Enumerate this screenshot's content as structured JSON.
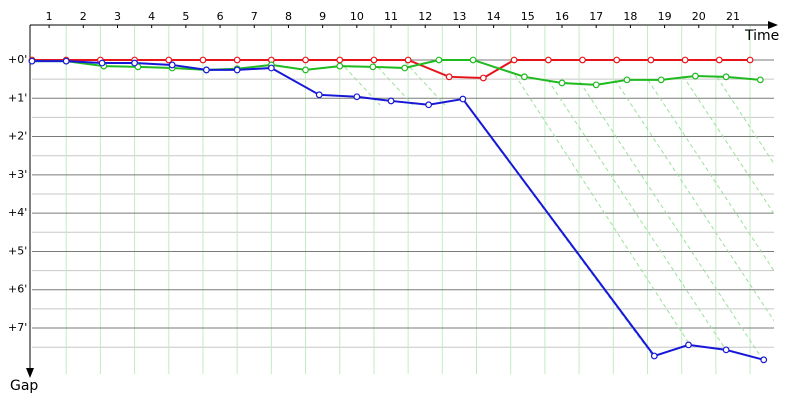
{
  "chart_data": {
    "type": "line",
    "x_label": "Time",
    "y_label": "Gap",
    "xlim": [
      0,
      21.7
    ],
    "ylim": [
      -0.9,
      8.2
    ],
    "y_inverted": true,
    "grid": true,
    "xticks": [
      {
        "value": 0.5,
        "label": "1"
      },
      {
        "value": 1.5,
        "label": "2"
      },
      {
        "value": 2.5,
        "label": "3"
      },
      {
        "value": 3.5,
        "label": "4"
      },
      {
        "value": 4.5,
        "label": "5"
      },
      {
        "value": 5.5,
        "label": "6"
      },
      {
        "value": 6.5,
        "label": "7"
      },
      {
        "value": 7.5,
        "label": "8"
      },
      {
        "value": 8.5,
        "label": "9"
      },
      {
        "value": 9.5,
        "label": "10"
      },
      {
        "value": 10.5,
        "label": "11"
      },
      {
        "value": 11.5,
        "label": "12"
      },
      {
        "value": 12.5,
        "label": "13"
      },
      {
        "value": 13.5,
        "label": "14"
      },
      {
        "value": 14.5,
        "label": "15"
      },
      {
        "value": 15.5,
        "label": "16"
      },
      {
        "value": 16.5,
        "label": "17"
      },
      {
        "value": 17.5,
        "label": "18"
      },
      {
        "value": 18.5,
        "label": "19"
      },
      {
        "value": 19.5,
        "label": "20"
      },
      {
        "value": 20.5,
        "label": "21"
      }
    ],
    "xgrid": [
      1,
      2,
      3,
      4,
      5,
      6,
      7,
      8,
      9,
      10,
      11,
      12,
      13,
      14,
      15,
      16,
      17,
      18,
      19,
      20,
      21
    ],
    "yticks": [
      {
        "value": 0,
        "label": "+0'"
      },
      {
        "value": 1,
        "label": "+1'"
      },
      {
        "value": 2,
        "label": "+2'"
      },
      {
        "value": 3,
        "label": "+3'"
      },
      {
        "value": 4,
        "label": "+4'"
      },
      {
        "value": 5,
        "label": "+5'"
      },
      {
        "value": 6,
        "label": "+6'"
      },
      {
        "value": 7,
        "label": "+7'"
      }
    ],
    "minor_yticks": [
      0.5,
      1.5,
      2.5,
      3.5,
      4.5,
      5.5,
      6.5,
      7.5
    ],
    "series": [
      {
        "color": "#e8141b",
        "x": [
          0,
          1,
          2,
          3,
          4,
          5,
          6,
          7,
          8,
          9,
          10,
          11,
          12.2,
          13.2,
          14.1,
          15.1,
          16.1,
          17.1,
          18.1,
          19.1,
          20.1,
          21
        ],
        "values": [
          0,
          0,
          0,
          0,
          0,
          0,
          0,
          0,
          0,
          0,
          0,
          0,
          0.44,
          0.47,
          0,
          0,
          0,
          0,
          0,
          0,
          0,
          0
        ]
      },
      {
        "color": "#1fba1f",
        "x": [
          0,
          1,
          2.1,
          3.1,
          4.1,
          5.1,
          6,
          7,
          8,
          9,
          9.97,
          10.9,
          11.9,
          12.9,
          14.4,
          15.5,
          16.5,
          17.4,
          18.4,
          19.4,
          20.3,
          21.3
        ],
        "values": [
          0.03,
          0.03,
          0.16,
          0.18,
          0.21,
          0.26,
          0.23,
          0.13,
          0.26,
          0.16,
          0.18,
          0.21,
          0,
          0,
          0.44,
          0.6,
          0.65,
          0.52,
          0.52,
          0.42,
          0.44,
          0.52
        ]
      },
      {
        "color": "#1717d8",
        "x": [
          0,
          1,
          2.05,
          3,
          4.1,
          5.1,
          6,
          7,
          8.4,
          9.5,
          10.5,
          11.6,
          12.6,
          18.2,
          19.2,
          20.3,
          21.4
        ],
        "values": [
          0.03,
          0.03,
          0.08,
          0.08,
          0.13,
          0.26,
          0.26,
          0.21,
          0.91,
          0.96,
          1.07,
          1.17,
          1.02,
          7.73,
          7.44,
          7.57,
          7.83
        ]
      }
    ]
  }
}
